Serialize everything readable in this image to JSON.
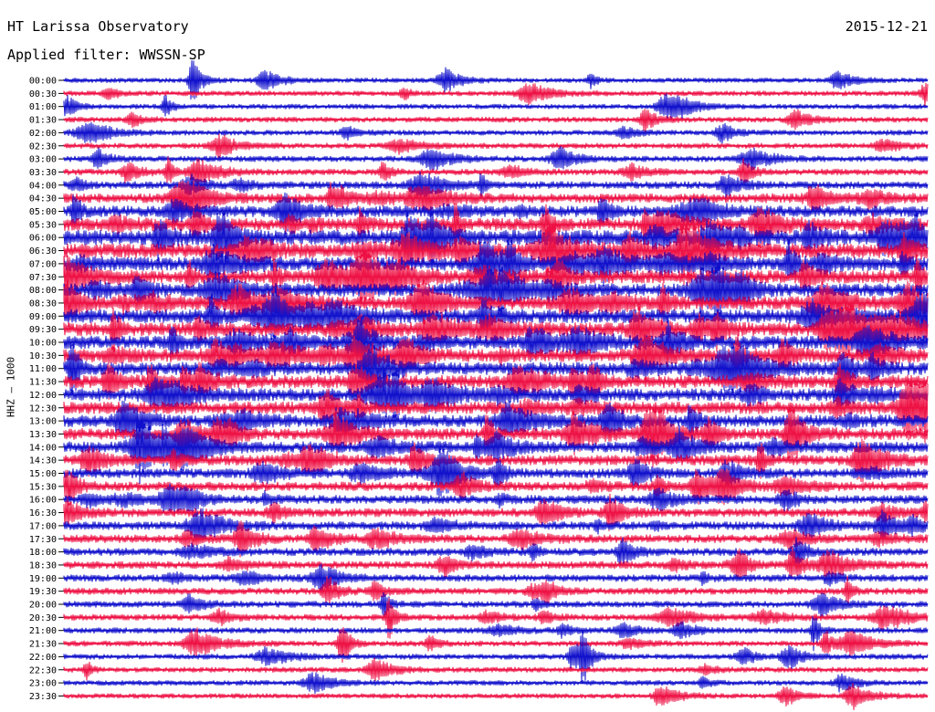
{
  "header": {
    "title": "HT Larissa Observatory",
    "date": "2015-12-21",
    "filter": "Applied filter: WWSSN-SP"
  },
  "station_label": "HHZ – 1000",
  "colors": {
    "blue": "#1111cc",
    "red": "#ee1144",
    "background": "#ffffff",
    "text": "#000000"
  },
  "chart_data": {
    "type": "line",
    "title": "HT Larissa Observatory",
    "date": "2015-12-21",
    "filter": "WWSSN-SP",
    "channel": "HHZ – 1000",
    "row_labels": [
      "00:00",
      "00:30",
      "01:00",
      "01:30",
      "02:00",
      "02:30",
      "03:00",
      "03:30",
      "04:00",
      "04:30",
      "05:00",
      "05:30",
      "06:00",
      "06:30",
      "07:00",
      "07:30",
      "08:00",
      "08:30",
      "09:00",
      "09:30",
      "10:00",
      "10:30",
      "11:00",
      "11:30",
      "12:00",
      "12:30",
      "13:00",
      "13:30",
      "14:00",
      "14:30",
      "15:00",
      "15:30",
      "16:00",
      "16:30",
      "17:00",
      "17:30",
      "18:00",
      "18:30",
      "19:00",
      "19:30",
      "20:00",
      "20:30",
      "21:00",
      "21:30",
      "22:00",
      "22:30",
      "23:00",
      "23:30"
    ],
    "row_colors": [
      "blue",
      "red"
    ],
    "activity_level": [
      0.12,
      0.14,
      0.13,
      0.16,
      0.15,
      0.16,
      0.18,
      0.2,
      0.28,
      0.4,
      0.5,
      0.6,
      0.75,
      0.7,
      0.65,
      0.62,
      0.6,
      0.62,
      0.65,
      0.65,
      0.63,
      0.62,
      0.6,
      0.6,
      0.58,
      0.56,
      0.55,
      0.52,
      0.5,
      0.45,
      0.4,
      0.38,
      0.35,
      0.35,
      0.33,
      0.32,
      0.3,
      0.28,
      0.26,
      0.24,
      0.22,
      0.2,
      0.18,
      0.17,
      0.16,
      0.15,
      0.14,
      0.13
    ],
    "grid": false
  }
}
